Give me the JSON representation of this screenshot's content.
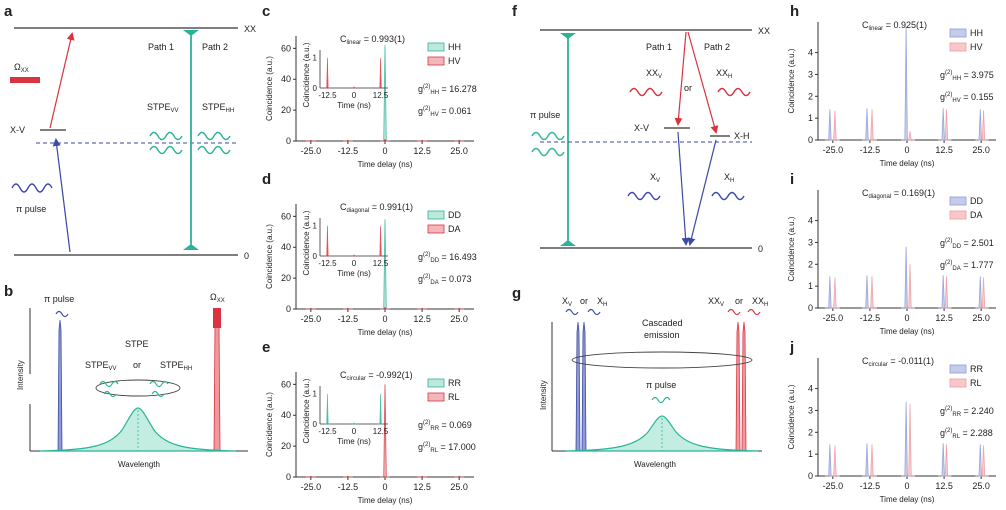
{
  "figure": {
    "panel_labels": {
      "a": "a",
      "b": "b",
      "c": "c",
      "d": "d",
      "e": "e",
      "f": "f",
      "g": "g",
      "h": "h",
      "i": "i",
      "j": "j"
    },
    "panel_a": {
      "xx": "XX",
      "xv": "X-V",
      "zero": "0",
      "omega": "Ω",
      "omega_sub": "XX",
      "pi_pulse": "π pulse",
      "path1": "Path 1",
      "path2": "Path 2",
      "stpe_vv": "STPE",
      "stpe_vv_sub": "VV",
      "stpe_hh": "STPE",
      "stpe_hh_sub": "HH"
    },
    "panel_b": {
      "pi_pulse": "π pulse",
      "omega": "Ω",
      "omega_sub": "XX",
      "stpe": "STPE",
      "stpe_vv": "STPE",
      "stpe_vv_sub": "VV",
      "or": "or",
      "stpe_hh": "STPE",
      "stpe_hh_sub": "HH",
      "ylabel": "Intensity",
      "xlabel": "Wavelength"
    },
    "panel_f": {
      "xx": "XX",
      "zero": "0",
      "path1": "Path 1",
      "path2": "Path 2",
      "xxv": "XX",
      "xxv_sub": "V",
      "or": "or",
      "xxh": "XX",
      "xxh_sub": "H",
      "pi_pulse": "π pulse",
      "xv": "X-V",
      "xh": "X-H",
      "xvlab": "X",
      "xvlab_sub": "V",
      "xhlab": "X",
      "xhlab_sub": "H"
    },
    "panel_g": {
      "xv": "X",
      "xv_sub": "V",
      "or1": "or",
      "xh": "X",
      "xh_sub": "H",
      "xxv": "XX",
      "xxv_sub": "V",
      "or2": "or",
      "xxh": "XX",
      "xxh_sub": "H",
      "cascade1": "Cascaded",
      "cascade2": "emission",
      "pi_pulse": "π pulse",
      "ylabel": "Intensity",
      "xlabel": "Wavelength"
    },
    "colors": {
      "teal": "#2bb39a",
      "red": "#d9333f",
      "blue": "#3d4aa6",
      "lteal": "#7fd6c0",
      "lblue": "#8f9bd6",
      "lred": "#f09aa0"
    }
  },
  "chart_data": [
    {
      "id": "c",
      "type": "bar",
      "title": "C",
      "title_sub": "linear",
      "title_value": " = 0.993(1)",
      "xlabel": "Time delay (ns)",
      "ylabel": "Coincidence (a.u.)",
      "x_ticks": [
        "-25.0",
        "-12.5",
        "0",
        "12.5",
        "25.0"
      ],
      "y_ticks": [
        "0",
        "20",
        "40",
        "60"
      ],
      "ylim": [
        0,
        68
      ],
      "xlim": [
        -30,
        30
      ],
      "series": [
        {
          "name": "HH",
          "color": "#2bb39a",
          "fill": "#bde8dc",
          "x": [
            -25,
            -12.5,
            0,
            12.5,
            25
          ],
          "y": [
            0.4,
            0.4,
            62,
            0.4,
            0.4
          ]
        },
        {
          "name": "HV",
          "color": "#d9333f",
          "fill": "#f3b6bb",
          "x": [
            -25,
            -12.5,
            0,
            12.5,
            25
          ],
          "y": [
            0.4,
            0.4,
            1.0,
            0.4,
            0.4
          ]
        }
      ],
      "annotations": [
        {
          "label": "g",
          "sub": "HH",
          "sup": "(2)",
          "value": " = 16.278"
        },
        {
          "label": "g",
          "sub": "HV",
          "sup": "(2)",
          "value": " = 0.061"
        }
      ],
      "inset": {
        "xlabel": "Time (ns)",
        "ylabel": "Coincidence (a.u.)",
        "x_ticks": [
          "-12.5",
          "0",
          "12.5"
        ],
        "y_ticks": [
          "0",
          "1"
        ],
        "ylim": [
          0,
          1.25
        ],
        "xlim": [
          -16,
          16
        ],
        "color": "#d9333f",
        "x": [
          -12.5,
          0,
          12.5
        ],
        "y": [
          1.0,
          0.04,
          1.0
        ]
      }
    },
    {
      "id": "d",
      "type": "bar",
      "title": "C",
      "title_sub": "diagonal",
      "title_value": " = 0.991(1)",
      "xlabel": "Time delay (ns)",
      "ylabel": "Coincidence (a.u.)",
      "x_ticks": [
        "-25.0",
        "-12.5",
        "0",
        "12.5",
        "25.0"
      ],
      "y_ticks": [
        "0",
        "20",
        "40",
        "60"
      ],
      "ylim": [
        0,
        68
      ],
      "xlim": [
        -30,
        30
      ],
      "series": [
        {
          "name": "DD",
          "color": "#2bb39a",
          "fill": "#bde8dc",
          "x": [
            -25,
            -12.5,
            0,
            12.5,
            25
          ],
          "y": [
            0.4,
            0.4,
            58,
            0.4,
            0.4
          ]
        },
        {
          "name": "DA",
          "color": "#d9333f",
          "fill": "#f3b6bb",
          "x": [
            -25,
            -12.5,
            0,
            12.5,
            25
          ],
          "y": [
            0.4,
            0.4,
            1.0,
            0.4,
            0.4
          ]
        }
      ],
      "annotations": [
        {
          "label": "g",
          "sub": "DD",
          "sup": "(2)",
          "value": " = 16.493"
        },
        {
          "label": "g",
          "sub": "DA",
          "sup": "(2)",
          "value": " = 0.073"
        }
      ],
      "inset": {
        "xlabel": "Time (ns)",
        "ylabel": "Coincidence (a.u.)",
        "x_ticks": [
          "-12.5",
          "0",
          "12.5"
        ],
        "y_ticks": [
          "0",
          "1"
        ],
        "ylim": [
          0,
          1.25
        ],
        "xlim": [
          -16,
          16
        ],
        "color": "#d9333f",
        "x": [
          -12.5,
          0,
          12.5
        ],
        "y": [
          1.0,
          0.04,
          1.0
        ]
      }
    },
    {
      "id": "e",
      "type": "bar",
      "title": "C",
      "title_sub": "circular",
      "title_value": " = -0.992(1)",
      "xlabel": "Time delay (ns)",
      "ylabel": "Coincidence (a.u.)",
      "x_ticks": [
        "-25.0",
        "-12.5",
        "0",
        "12.5",
        "25.0"
      ],
      "y_ticks": [
        "0",
        "20",
        "40",
        "60"
      ],
      "ylim": [
        0,
        68
      ],
      "xlim": [
        -30,
        30
      ],
      "series": [
        {
          "name": "RR",
          "color": "#2bb39a",
          "fill": "#bde8dc",
          "x": [
            -25,
            -12.5,
            0,
            12.5,
            25
          ],
          "y": [
            0.4,
            0.4,
            1.0,
            0.4,
            0.4
          ]
        },
        {
          "name": "RL",
          "color": "#d9333f",
          "fill": "#f3b6bb",
          "x": [
            -25,
            -12.5,
            0,
            12.5,
            25
          ],
          "y": [
            0.4,
            0.4,
            60,
            0.4,
            0.4
          ]
        }
      ],
      "annotations": [
        {
          "label": "g",
          "sub": "RR",
          "sup": "(2)",
          "value": " = 0.069"
        },
        {
          "label": "g",
          "sub": "RL",
          "sup": "(2)",
          "value": " = 17.000"
        }
      ],
      "inset": {
        "xlabel": "Time (ns)",
        "ylabel": "Coincidence (a.u.)",
        "x_ticks": [
          "-12.5",
          "0",
          "12.5"
        ],
        "y_ticks": [
          "0",
          "1"
        ],
        "ylim": [
          0,
          1.25
        ],
        "xlim": [
          -16,
          16
        ],
        "color": "#2bb39a",
        "x": [
          -12.5,
          0,
          12.5
        ],
        "y": [
          1.0,
          0.04,
          1.0
        ]
      }
    },
    {
      "id": "h",
      "type": "bar",
      "title": "C",
      "title_sub": "linear",
      "title_value": " = 0.925(1)",
      "xlabel": "Time delay (ns)",
      "ylabel": "Coincidence (a.u.)",
      "x_ticks": [
        "-25.0",
        "-12.5",
        "0",
        "12.5",
        "25.0"
      ],
      "y_ticks": [
        "0",
        "1",
        "2",
        "3",
        "4"
      ],
      "ylim": [
        0,
        5.4
      ],
      "xlim": [
        -30,
        30
      ],
      "series": [
        {
          "name": "HH",
          "color": "#8f9bd6",
          "fill": "#c4cbeb",
          "x": [
            -26,
            -13.5,
            -0.3,
            12.2,
            24.7
          ],
          "y": [
            1.4,
            1.45,
            5.2,
            1.45,
            1.4
          ]
        },
        {
          "name": "HV",
          "color": "#f09aa0",
          "fill": "#f7c8cb",
          "x": [
            -24.3,
            -11.8,
            1.0,
            13.3,
            25.8
          ],
          "y": [
            1.35,
            1.4,
            0.4,
            1.4,
            1.35
          ]
        }
      ],
      "annotations": [
        {
          "label": "g",
          "sub": "HH",
          "sup": "(2)",
          "value": " = 3.975"
        },
        {
          "label": "g",
          "sub": "HV",
          "sup": "(2)",
          "value": " = 0.155"
        }
      ]
    },
    {
      "id": "i",
      "type": "bar",
      "title": "C",
      "title_sub": "diagonal",
      "title_value": " = 0.169(1)",
      "xlabel": "Time delay (ns)",
      "ylabel": "Coincidence (a.u.)",
      "x_ticks": [
        "-25.0",
        "-12.5",
        "0",
        "12.5",
        "25.0"
      ],
      "y_ticks": [
        "0",
        "1",
        "2",
        "3",
        "4"
      ],
      "ylim": [
        0,
        5.4
      ],
      "xlim": [
        -30,
        30
      ],
      "series": [
        {
          "name": "DD",
          "color": "#8f9bd6",
          "fill": "#c4cbeb",
          "x": [
            -26,
            -13.5,
            -0.3,
            12.2,
            24.7
          ],
          "y": [
            1.45,
            1.5,
            2.8,
            1.5,
            1.45
          ]
        },
        {
          "name": "DA",
          "color": "#f09aa0",
          "fill": "#f7c8cb",
          "x": [
            -24.3,
            -11.8,
            1.0,
            13.3,
            25.8
          ],
          "y": [
            1.4,
            1.45,
            2.0,
            1.45,
            1.4
          ]
        }
      ],
      "annotations": [
        {
          "label": "g",
          "sub": "DD",
          "sup": "(2)",
          "value": " = 2.501"
        },
        {
          "label": "g",
          "sub": "DA",
          "sup": "(2)",
          "value": " = 1.777"
        }
      ]
    },
    {
      "id": "j",
      "type": "bar",
      "title": "C",
      "title_sub": "circular",
      "title_value": " = -0.011(1)",
      "xlabel": "Time delay (ns)",
      "ylabel": "Coincidence (a.u.)",
      "x_ticks": [
        "-25.0",
        "-12.5",
        "0",
        "12.5",
        "25.0"
      ],
      "y_ticks": [
        "0",
        "1",
        "2",
        "3",
        "4"
      ],
      "ylim": [
        0,
        5.4
      ],
      "xlim": [
        -30,
        30
      ],
      "series": [
        {
          "name": "RR",
          "color": "#8f9bd6",
          "fill": "#c4cbeb",
          "x": [
            -26,
            -13.5,
            -0.3,
            12.2,
            24.7
          ],
          "y": [
            1.45,
            1.5,
            3.4,
            1.5,
            1.45
          ]
        },
        {
          "name": "RL",
          "color": "#f09aa0",
          "fill": "#f7c8cb",
          "x": [
            -24.3,
            -11.8,
            1.0,
            13.3,
            25.8
          ],
          "y": [
            1.4,
            1.45,
            3.3,
            1.45,
            1.4
          ]
        }
      ],
      "annotations": [
        {
          "label": "g",
          "sub": "RR",
          "sup": "(2)",
          "value": " = 2.240"
        },
        {
          "label": "g",
          "sub": "RL",
          "sup": "(2)",
          "value": " = 2.288"
        }
      ]
    }
  ]
}
